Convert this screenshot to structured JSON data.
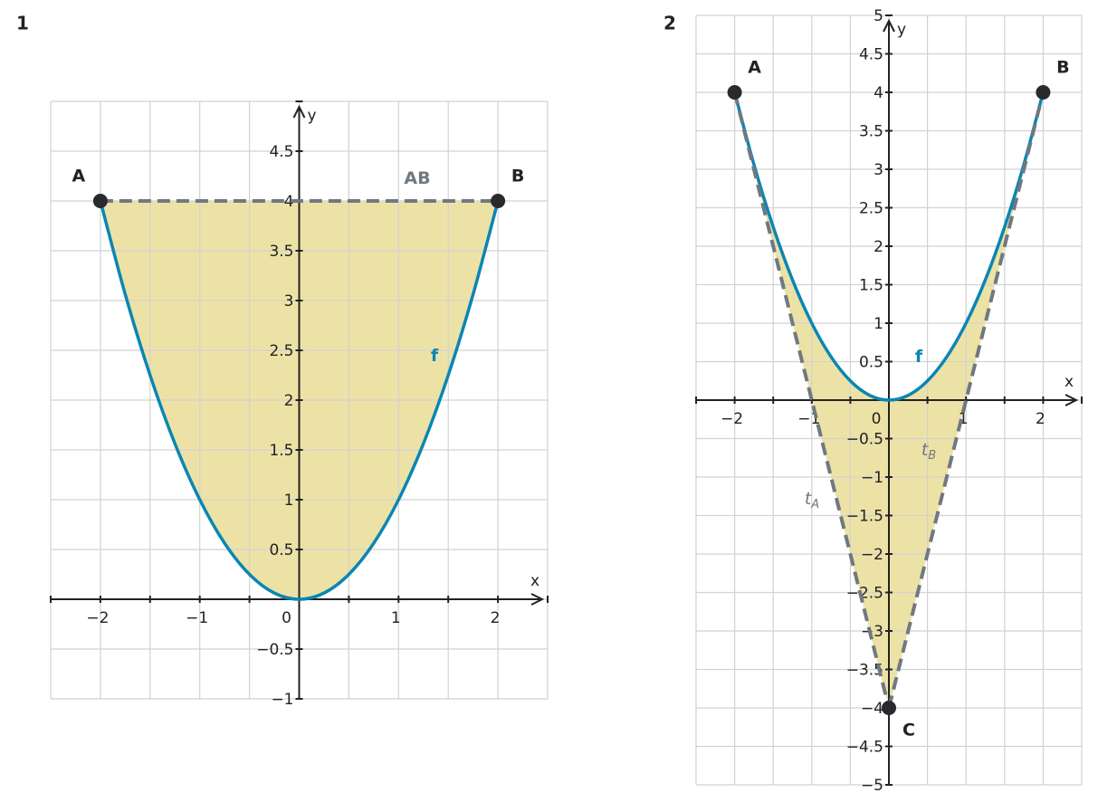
{
  "chart_data": [
    {
      "type": "line",
      "label": "1",
      "xlabel": "x",
      "ylabel": "y",
      "xlim": [
        -2.5,
        2.5
      ],
      "ylim": [
        -1,
        5
      ],
      "xticks": [
        {
          "value": -2,
          "label": "−2"
        },
        {
          "value": -1,
          "label": "−1"
        },
        0,
        1,
        2
      ],
      "yticks": [
        {
          "value": -1,
          "label": "−1"
        },
        {
          "value": -0.5,
          "label": "−0.5"
        },
        0.5,
        1,
        1.5,
        2,
        2.5,
        3,
        3.5,
        4,
        4.5
      ],
      "xgrid": [
        -2.5,
        -2,
        -1.5,
        -1,
        -0.5,
        0,
        0.5,
        1,
        1.5,
        2,
        2.5
      ],
      "ygrid": [
        -1,
        -0.5,
        0,
        0.5,
        1,
        1.5,
        2,
        2.5,
        3,
        3.5,
        4,
        4.5,
        5
      ],
      "fill_color": "#ede2a6",
      "series": [
        {
          "name": "f",
          "color": "#0a86b4",
          "x": [
            -2,
            -1.75,
            -1.5,
            -1.25,
            -1,
            -0.75,
            -0.5,
            -0.25,
            0,
            0.25,
            0.5,
            0.75,
            1,
            1.25,
            1.5,
            1.75,
            2
          ],
          "values": [
            4,
            3.0625,
            2.25,
            1.5625,
            1,
            0.5625,
            0.25,
            0.0625,
            0,
            0.0625,
            0.25,
            0.5625,
            1,
            1.5625,
            2.25,
            3.0625,
            4
          ]
        },
        {
          "name": "AB",
          "color": "#707880",
          "dashed": true,
          "x": [
            -2,
            2
          ],
          "values": [
            4,
            4
          ]
        }
      ],
      "points": [
        {
          "name": "A",
          "x": -2,
          "y": 4
        },
        {
          "name": "B",
          "x": 2,
          "y": 4
        }
      ]
    },
    {
      "type": "line",
      "label": "2",
      "xlabel": "x",
      "ylabel": "y",
      "xlim": [
        -2.5,
        2.5
      ],
      "ylim": [
        -5,
        5
      ],
      "xticks": [
        {
          "value": -2,
          "label": "−2"
        },
        {
          "value": -1,
          "label": "−1"
        },
        0,
        1,
        2
      ],
      "yticks": [
        5,
        {
          "value": -5,
          "label": "−5"
        },
        {
          "value": -4.5,
          "label": "−4.5"
        },
        {
          "value": -4,
          "label": "−4"
        },
        {
          "value": -3.5,
          "label": "−3.5"
        },
        {
          "value": -3,
          "label": "−3"
        },
        {
          "value": -2.5,
          "label": "−2.5"
        },
        {
          "value": -2,
          "label": "−2"
        },
        {
          "value": -1.5,
          "label": "−1.5"
        },
        {
          "value": -1,
          "label": "−1"
        },
        {
          "value": -0.5,
          "label": "−0.5"
        },
        0.5,
        1,
        1.5,
        2,
        2.5,
        3,
        3.5,
        4,
        4.5
      ],
      "xgrid": [
        -2.5,
        -2,
        -1.5,
        -1,
        -0.5,
        0,
        0.5,
        1,
        1.5,
        2,
        2.5
      ],
      "ygrid": [
        -5,
        -4.5,
        -4,
        -3.5,
        -3,
        -2.5,
        -2,
        -1.5,
        -1,
        -0.5,
        0,
        0.5,
        1,
        1.5,
        2,
        2.5,
        3,
        3.5,
        4,
        4.5,
        5
      ],
      "fill_color": "#ede2a6",
      "series": [
        {
          "name": "f",
          "color": "#0a86b4",
          "x": [
            -2,
            -1.75,
            -1.5,
            -1.25,
            -1,
            -0.75,
            -0.5,
            -0.25,
            0,
            0.25,
            0.5,
            0.75,
            1,
            1.25,
            1.5,
            1.75,
            2
          ],
          "values": [
            4,
            3.0625,
            2.25,
            1.5625,
            1,
            0.5625,
            0.25,
            0.0625,
            0,
            0.0625,
            0.25,
            0.5625,
            1,
            1.5625,
            2.25,
            3.0625,
            4
          ]
        },
        {
          "name": "t",
          "subscript": "A",
          "color": "#707880",
          "dashed": true,
          "x": [
            -2,
            0
          ],
          "values": [
            4,
            -4
          ]
        },
        {
          "name": "t",
          "subscript": "B",
          "color": "#707880",
          "dashed": true,
          "x": [
            0,
            2
          ],
          "values": [
            -4,
            4
          ]
        }
      ],
      "points": [
        {
          "name": "A",
          "x": -2,
          "y": 4
        },
        {
          "name": "B",
          "x": 2,
          "y": 4
        },
        {
          "name": "C",
          "x": 0,
          "y": -4
        }
      ]
    }
  ]
}
